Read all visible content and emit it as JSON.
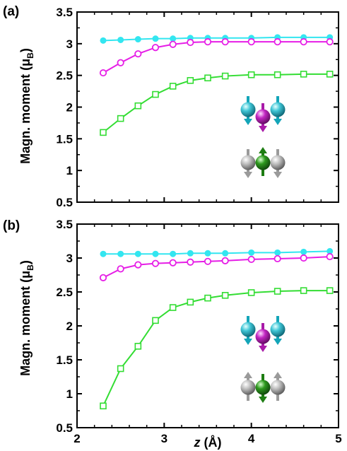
{
  "chart_data": [
    {
      "type": "line",
      "panel_label": "(a)",
      "xlabel": "z  (Å)",
      "ylabel": "Magn. moment (μB)",
      "xlim": [
        2,
        5
      ],
      "ylim": [
        0.5,
        3.5
      ],
      "xticks": [
        "2",
        "3",
        "4",
        "5"
      ],
      "yticks": [
        "0.5",
        "1",
        "1.5",
        "2",
        "2.5",
        "3",
        "3.5"
      ],
      "series": [
        {
          "color": "#33e6f0",
          "marker": "filled-circle",
          "x": [
            2.3,
            2.5,
            2.7,
            2.9,
            3.1,
            3.3,
            3.5,
            3.7,
            4.0,
            4.3,
            4.6,
            4.9
          ],
          "values": [
            3.05,
            3.06,
            3.07,
            3.08,
            3.08,
            3.09,
            3.09,
            3.09,
            3.09,
            3.1,
            3.1,
            3.1
          ]
        },
        {
          "color": "#e61ee6",
          "marker": "open-circle",
          "x": [
            2.3,
            2.5,
            2.7,
            2.9,
            3.1,
            3.3,
            3.5,
            3.7,
            4.0,
            4.3,
            4.6,
            4.9
          ],
          "values": [
            2.54,
            2.7,
            2.84,
            2.94,
            2.99,
            3.02,
            3.03,
            3.03,
            3.03,
            3.03,
            3.03,
            3.03
          ]
        },
        {
          "color": "#33dd33",
          "marker": "open-square",
          "x": [
            2.3,
            2.5,
            2.7,
            2.9,
            3.1,
            3.3,
            3.5,
            3.7,
            4.0,
            4.3,
            4.6,
            4.9
          ],
          "values": [
            1.6,
            1.82,
            2.02,
            2.2,
            2.33,
            2.42,
            2.46,
            2.49,
            2.51,
            2.51,
            2.52,
            2.52
          ]
        }
      ],
      "inset": {
        "top_row": [
          "cyan-down",
          "magenta-down",
          "cyan-down"
        ],
        "bottom_row": [
          "gray-down",
          "green-up",
          "gray-down"
        ]
      }
    },
    {
      "type": "line",
      "panel_label": "(b)",
      "xlabel": "z  (Å)",
      "ylabel": "Magn. moment (μB)",
      "xlim": [
        2,
        5
      ],
      "ylim": [
        0.5,
        3.5
      ],
      "xticks": [
        "2",
        "3",
        "4",
        "5"
      ],
      "yticks": [
        "0.5",
        "1",
        "1.5",
        "2",
        "2.5",
        "3",
        "3.5"
      ],
      "series": [
        {
          "color": "#33e6f0",
          "marker": "filled-circle",
          "x": [
            2.3,
            2.5,
            2.7,
            2.9,
            3.1,
            3.3,
            3.5,
            3.7,
            4.0,
            4.3,
            4.6,
            4.9
          ],
          "values": [
            3.06,
            3.06,
            3.06,
            3.06,
            3.06,
            3.07,
            3.07,
            3.07,
            3.08,
            3.08,
            3.09,
            3.1
          ]
        },
        {
          "color": "#e61ee6",
          "marker": "open-circle",
          "x": [
            2.3,
            2.5,
            2.7,
            2.9,
            3.1,
            3.3,
            3.5,
            3.7,
            4.0,
            4.3,
            4.6,
            4.9
          ],
          "values": [
            2.71,
            2.84,
            2.9,
            2.92,
            2.93,
            2.94,
            2.95,
            2.96,
            2.98,
            2.99,
            3.0,
            3.02
          ]
        },
        {
          "color": "#33dd33",
          "marker": "open-square",
          "x": [
            2.3,
            2.5,
            2.7,
            2.9,
            3.1,
            3.3,
            3.5,
            3.7,
            4.0,
            4.3,
            4.6,
            4.9
          ],
          "values": [
            0.82,
            1.37,
            1.7,
            2.08,
            2.27,
            2.35,
            2.41,
            2.45,
            2.49,
            2.51,
            2.52,
            2.52
          ]
        }
      ],
      "inset": {
        "top_row": [
          "cyan-down",
          "magenta-down",
          "cyan-down"
        ],
        "bottom_row": [
          "gray-up",
          "green-down",
          "gray-up"
        ]
      }
    }
  ]
}
